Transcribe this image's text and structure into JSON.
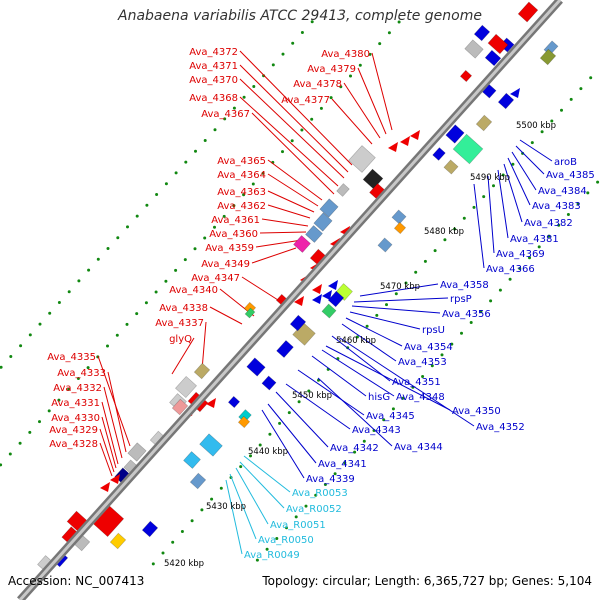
{
  "title": "Anabaena variabilis ATCC 29413, complete genome",
  "footer": {
    "accession": "Accession: NC_007413",
    "summary": "Topology: circular; Length: 6,365,727 bp; Genes: 5,104"
  },
  "colors": {
    "left_labels": "#dd0000",
    "right_labels": "#0000cc",
    "rna_labels": "#22bbdd",
    "backbone": "#888888",
    "tick": "#118811"
  },
  "scale_labels": [
    {
      "text": "5500 kbp"
    },
    {
      "text": "5490 kbp"
    },
    {
      "text": "5480 kbp"
    },
    {
      "text": "5470 kbp"
    },
    {
      "text": "5460 kbp"
    },
    {
      "text": "5450 kbp"
    },
    {
      "text": "5440 kbp"
    },
    {
      "text": "5430 kbp"
    },
    {
      "text": "5420 kbp"
    }
  ],
  "left_labels": [
    "Ava_4372",
    "Ava_4371",
    "Ava_4370",
    "Ava_4368",
    "Ava_4367",
    "Ava_4380",
    "Ava_4379",
    "Ava_4378",
    "Ava_4377",
    "Ava_4365",
    "Ava_4364",
    "Ava_4363",
    "Ava_4362",
    "Ava_4361",
    "Ava_4360",
    "Ava_4359",
    "Ava_4349",
    "Ava_4347",
    "Ava_4340",
    "Ava_4338",
    "Ava_4337",
    "glyQ",
    "Ava_4335",
    "Ava_4333",
    "Ava_4332",
    "Ava_4331",
    "Ava_4330",
    "Ava_4329",
    "Ava_4328"
  ],
  "right_labels": [
    "aroB",
    "Ava_4385",
    "Ava_4384",
    "Ava_4383",
    "Ava_4382",
    "Ava_4381",
    "Ava_4369",
    "Ava_4366",
    "Ava_4358",
    "rpsP",
    "Ava_4356",
    "rpsU",
    "Ava_4354",
    "Ava_4353",
    "Ava_4351",
    "hisG",
    "Ava_4348",
    "Ava_4345",
    "Ava_4350",
    "Ava_4343",
    "Ava_4352",
    "Ava_4342",
    "Ava_4344",
    "Ava_4341",
    "Ava_4339"
  ],
  "rna_labels": [
    "Ava_R0053",
    "Ava_R0052",
    "Ava_R0051",
    "Ava_R0050",
    "Ava_R0049"
  ]
}
